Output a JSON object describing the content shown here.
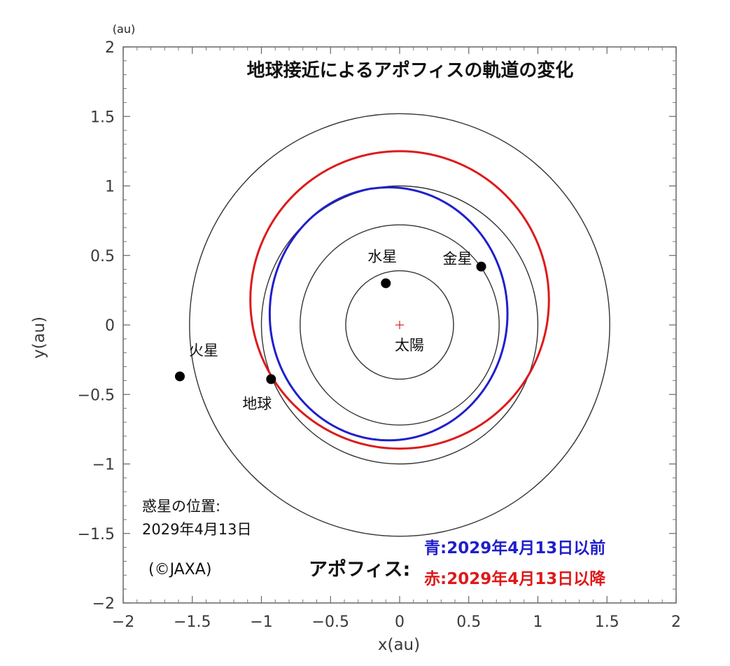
{
  "chart_data": {
    "type": "scatter",
    "title": "地球接近によるアポフィスの軌道の変化",
    "xlabel": "x(au)",
    "ylabel": "y(au)",
    "unit_label": "(au)",
    "xlim": [
      -2,
      2
    ],
    "ylim": [
      -2,
      2
    ],
    "xticks": [
      -2,
      -1.5,
      -1,
      -0.5,
      0,
      0.5,
      1,
      1.5,
      2
    ],
    "yticks": [
      -2,
      -1.5,
      -1,
      -0.5,
      0,
      0.5,
      1,
      1.5,
      2
    ],
    "tick_labels": [
      "−2",
      "−1.5",
      "−1",
      "−0.5",
      "0",
      "0.5",
      "1",
      "1.5",
      "2"
    ],
    "grid": false,
    "sun": {
      "label": "太陽",
      "x": 0,
      "y": 0
    },
    "planet_orbits": [
      {
        "name": "水星",
        "radius": 0.39
      },
      {
        "name": "金星",
        "radius": 0.72
      },
      {
        "name": "地球",
        "radius": 1.0
      },
      {
        "name": "火星",
        "radius": 1.52
      }
    ],
    "planets": [
      {
        "label": "水星",
        "x": -0.1,
        "y": 0.3
      },
      {
        "label": "金星",
        "x": 0.59,
        "y": 0.42
      },
      {
        "label": "地球",
        "x": -0.93,
        "y": -0.39
      },
      {
        "label": "火星",
        "x": -1.59,
        "y": -0.37
      }
    ],
    "apophis_orbits": [
      {
        "name": "青:2029年4月13日以前",
        "color": "#1f1fcc",
        "center": [
          -0.08,
          0.08
        ],
        "rx": 0.86,
        "ry": 0.91
      },
      {
        "name": "赤:2029年4月13日以降",
        "color": "#dd1a1a",
        "center": [
          0.0,
          0.18
        ],
        "rx": 1.08,
        "ry": 1.07
      }
    ],
    "note_lines": [
      "惑星の位置:",
      "2029年4月13日"
    ],
    "legend_label": "アポフィス:",
    "legend_position": "bottom-right",
    "copyright": "(©JAXA)",
    "colors": {
      "orbit": "#333333",
      "planet": "#000000",
      "sun": "#dd2222",
      "before": "#1f1fcc",
      "after": "#dd1a1a"
    }
  }
}
